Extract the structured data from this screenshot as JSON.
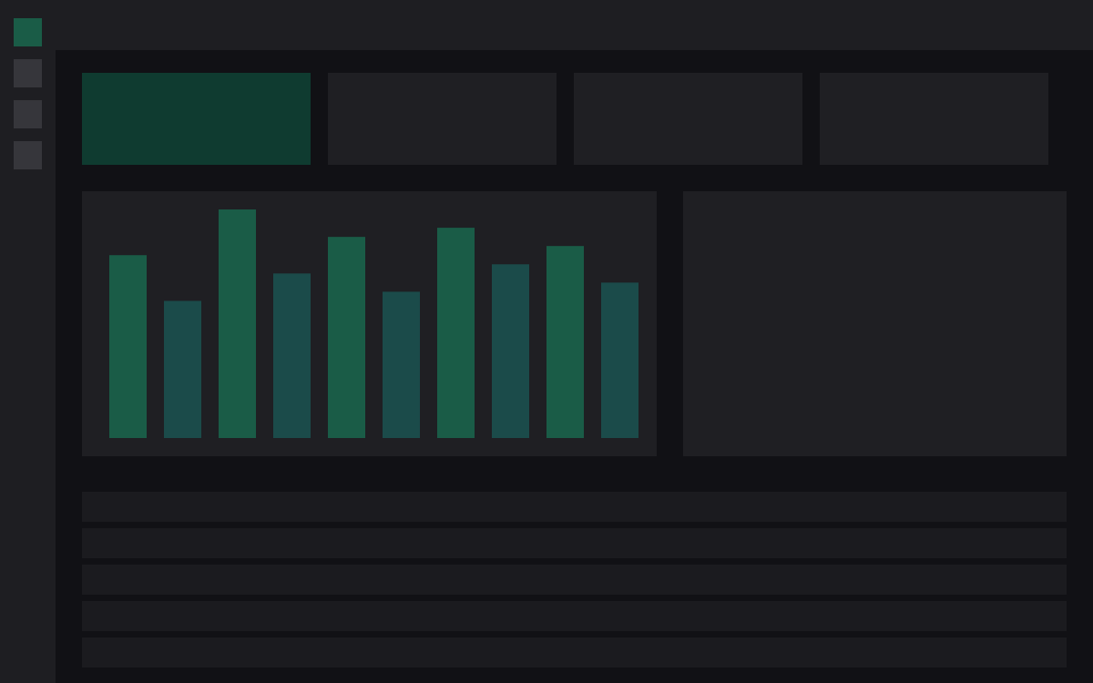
{
  "chart_data": {
    "type": "bar",
    "values": [
      200,
      150,
      250,
      180,
      220,
      160,
      230,
      190,
      210,
      170
    ],
    "colors": [
      "#1a5c47",
      "#1b4b4a",
      "#1a5c47",
      "#1b4b4a",
      "#1a5c47",
      "#1b4b4a",
      "#1a5c47",
      "#1b4b4a",
      "#1a5c47",
      "#1b4b4a"
    ],
    "ylim": [
      0,
      250
    ]
  }
}
